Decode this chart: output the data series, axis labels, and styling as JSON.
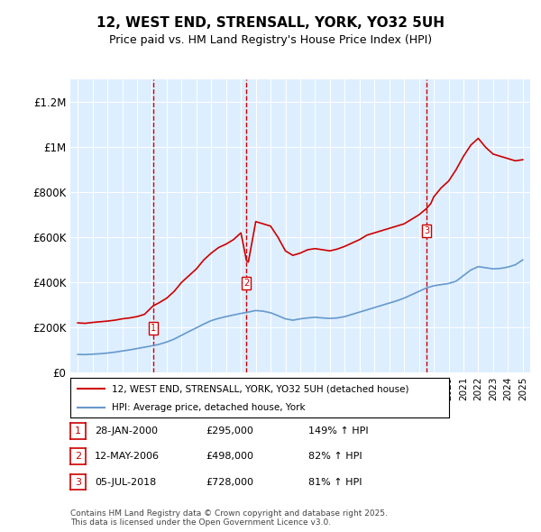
{
  "title": "12, WEST END, STRENSALL, YORK, YO32 5UH",
  "subtitle": "Price paid vs. HM Land Registry's House Price Index (HPI)",
  "legend_line1": "12, WEST END, STRENSALL, YORK, YO32 5UH (detached house)",
  "legend_line2": "HPI: Average price, detached house, York",
  "footer": "Contains HM Land Registry data © Crown copyright and database right 2025.\nThis data is licensed under the Open Government Licence v3.0.",
  "transactions": [
    {
      "num": 1,
      "date": "28-JAN-2000",
      "price": 295000,
      "hpi_pct": "149% ↑ HPI",
      "x": 2000.07
    },
    {
      "num": 2,
      "date": "12-MAY-2006",
      "price": 498000,
      "hpi_pct": "82% ↑ HPI",
      "x": 2006.37
    },
    {
      "num": 3,
      "date": "05-JUL-2018",
      "price": 728000,
      "hpi_pct": "81% ↑ HPI",
      "x": 2018.51
    }
  ],
  "ylim": [
    0,
    1300000
  ],
  "yticks": [
    0,
    200000,
    400000,
    600000,
    800000,
    1000000,
    1200000
  ],
  "ytick_labels": [
    "£0",
    "£200K",
    "£400K",
    "£600K",
    "£800K",
    "£1M",
    "£1.2M"
  ],
  "red_color": "#cc0000",
  "blue_color": "#6699cc",
  "background_color": "#ddeeff",
  "plot_bg": "#ddeeff",
  "grid_color": "#ffffff",
  "vline_color": "#cc0000",
  "red_line_data": {
    "years": [
      1995.0,
      1995.5,
      1996.0,
      1996.5,
      1997.0,
      1997.5,
      1998.0,
      1998.5,
      1999.0,
      1999.5,
      2000.07,
      2000.5,
      2001.0,
      2001.5,
      2002.0,
      2002.5,
      2003.0,
      2003.5,
      2004.0,
      2004.5,
      2005.0,
      2005.5,
      2006.0,
      2006.37,
      2006.5,
      2007.0,
      2007.5,
      2008.0,
      2008.5,
      2009.0,
      2009.5,
      2010.0,
      2010.5,
      2011.0,
      2011.5,
      2012.0,
      2012.5,
      2013.0,
      2013.5,
      2014.0,
      2014.5,
      2015.0,
      2015.5,
      2016.0,
      2016.5,
      2017.0,
      2017.5,
      2018.0,
      2018.51,
      2018.8,
      2019.0,
      2019.5,
      2020.0,
      2020.5,
      2021.0,
      2021.5,
      2022.0,
      2022.5,
      2023.0,
      2023.5,
      2024.0,
      2024.5,
      2025.0
    ],
    "values": [
      220000,
      218000,
      222000,
      225000,
      228000,
      232000,
      238000,
      242000,
      248000,
      258000,
      295000,
      310000,
      330000,
      360000,
      400000,
      430000,
      460000,
      500000,
      530000,
      555000,
      570000,
      590000,
      620000,
      498000,
      490000,
      670000,
      660000,
      650000,
      600000,
      540000,
      520000,
      530000,
      545000,
      550000,
      545000,
      540000,
      548000,
      560000,
      575000,
      590000,
      610000,
      620000,
      630000,
      640000,
      650000,
      660000,
      680000,
      700000,
      728000,
      750000,
      780000,
      820000,
      850000,
      900000,
      960000,
      1010000,
      1040000,
      1000000,
      970000,
      960000,
      950000,
      940000,
      945000
    ]
  },
  "blue_line_data": {
    "years": [
      1995.0,
      1995.5,
      1996.0,
      1996.5,
      1997.0,
      1997.5,
      1998.0,
      1998.5,
      1999.0,
      1999.5,
      2000.0,
      2000.5,
      2001.0,
      2001.5,
      2002.0,
      2002.5,
      2003.0,
      2003.5,
      2004.0,
      2004.5,
      2005.0,
      2005.5,
      2006.0,
      2006.5,
      2007.0,
      2007.5,
      2008.0,
      2008.5,
      2009.0,
      2009.5,
      2010.0,
      2010.5,
      2011.0,
      2011.5,
      2012.0,
      2012.5,
      2013.0,
      2013.5,
      2014.0,
      2014.5,
      2015.0,
      2015.5,
      2016.0,
      2016.5,
      2017.0,
      2017.5,
      2018.0,
      2018.5,
      2019.0,
      2019.5,
      2020.0,
      2020.5,
      2021.0,
      2021.5,
      2022.0,
      2022.5,
      2023.0,
      2023.5,
      2024.0,
      2024.5,
      2025.0
    ],
    "values": [
      80000,
      79000,
      81000,
      83000,
      86000,
      90000,
      95000,
      100000,
      106000,
      112000,
      118000,
      125000,
      135000,
      148000,
      165000,
      182000,
      198000,
      215000,
      230000,
      240000,
      248000,
      255000,
      262000,
      268000,
      275000,
      272000,
      265000,
      252000,
      238000,
      232000,
      238000,
      242000,
      245000,
      242000,
      240000,
      242000,
      248000,
      258000,
      268000,
      278000,
      288000,
      298000,
      308000,
      318000,
      330000,
      345000,
      360000,
      375000,
      385000,
      390000,
      395000,
      405000,
      430000,
      455000,
      470000,
      465000,
      460000,
      462000,
      468000,
      478000,
      500000
    ]
  }
}
